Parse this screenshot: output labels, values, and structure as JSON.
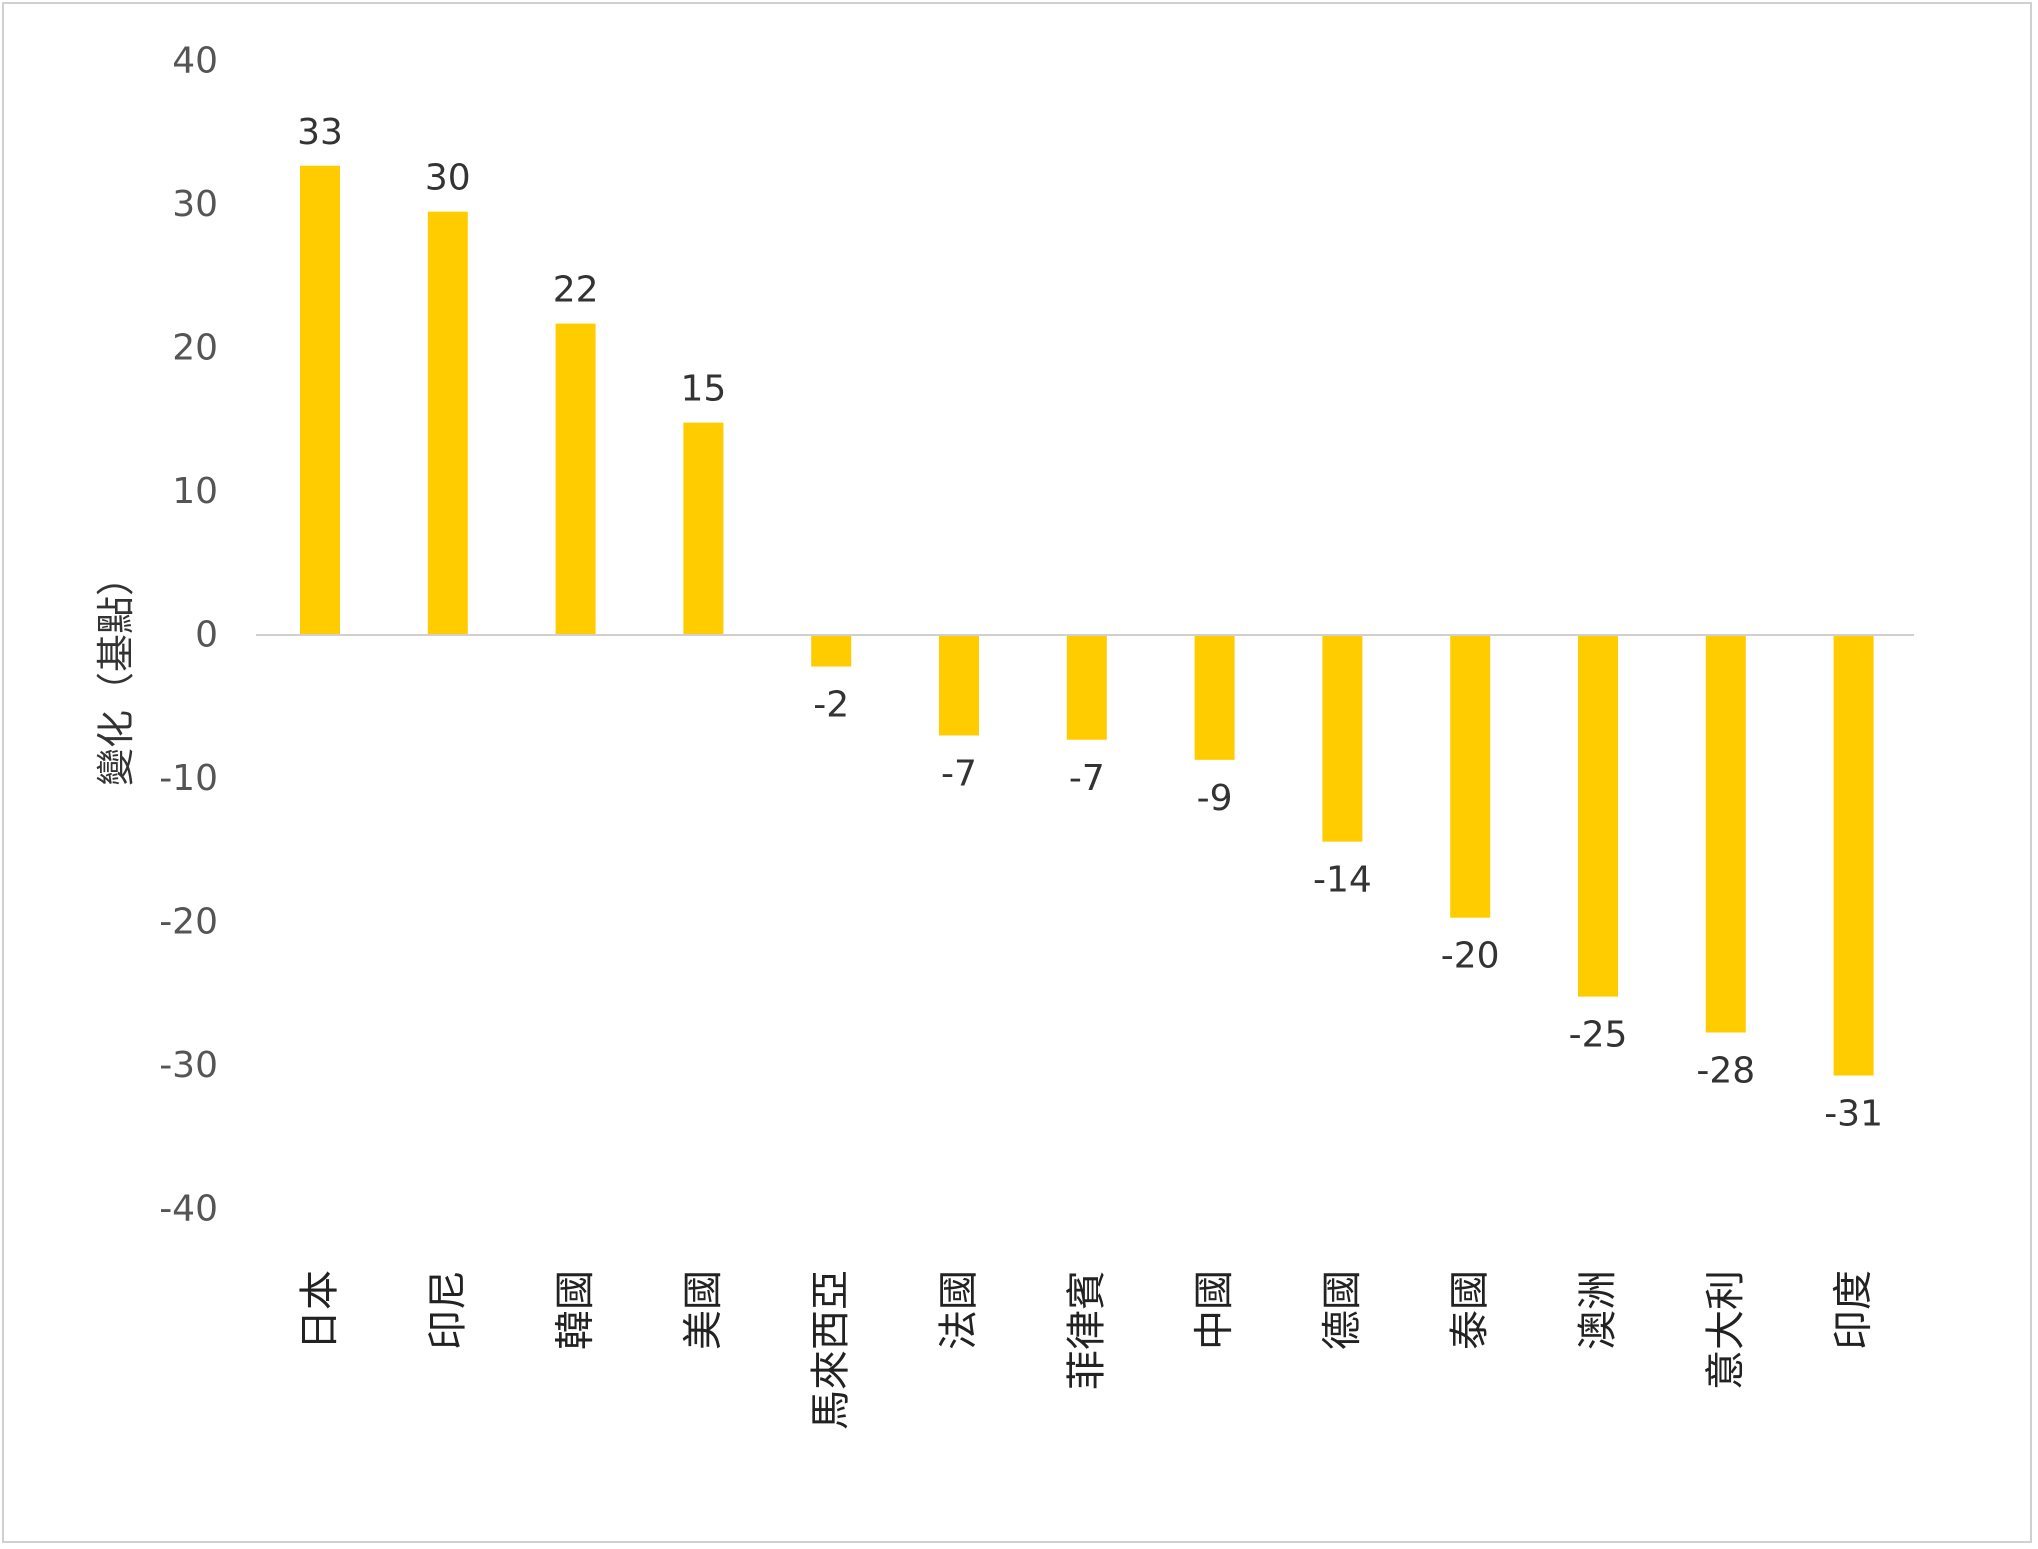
{
  "chart_data": {
    "type": "bar",
    "title": "",
    "xlabel": "",
    "ylabel": "變化（基點）",
    "ylim": [
      -40,
      40
    ],
    "yticks": [
      40,
      30,
      20,
      10,
      0,
      -10,
      -20,
      -30,
      -40
    ],
    "grid": false,
    "legend": "none",
    "bar_color": "#FFCC00",
    "categories": [
      "日本",
      "印尼",
      "韓國",
      "美國",
      "馬來西亞",
      "法國",
      "菲律賓",
      "中國",
      "德國",
      "泰國",
      "澳洲",
      "意大利",
      "印度"
    ],
    "values": [
      32.7,
      29.5,
      21.7,
      14.8,
      -2.2,
      -7.0,
      -7.3,
      -8.7,
      -14.4,
      -19.7,
      -25.2,
      -27.7,
      -30.7
    ],
    "data_labels": [
      "33",
      "30",
      "22",
      "15",
      "-2",
      "-7",
      "-7",
      "-9",
      "-14",
      "-20",
      "-25",
      "-28",
      "-31"
    ]
  }
}
